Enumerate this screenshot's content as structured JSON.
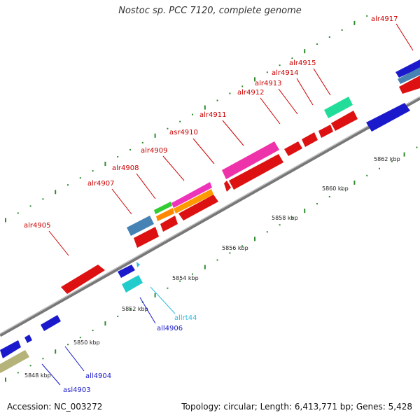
{
  "title": "Nostoc sp. PCC 7120, complete genome",
  "footer": {
    "accession": "Accession: NC_003272",
    "summary": "Topology: circular; Length: 6,413,771 bp; Genes: 5,428"
  },
  "ticks": [
    "5848 kbp",
    "5850 kbp",
    "5852 kbp",
    "5854 kbp",
    "5856 kbp",
    "5858 kbp",
    "5860 kbp",
    "5862 kbp"
  ],
  "genes": [
    {
      "name": "asl4903",
      "color": "#1a1acc"
    },
    {
      "name": "all4904",
      "color": "#1a1acc"
    },
    {
      "name": "alr4905",
      "color": "#cc0000"
    },
    {
      "name": "all4906",
      "color": "#1a1acc"
    },
    {
      "name": "allrt44",
      "color": "#33bbdd"
    },
    {
      "name": "alr4907",
      "color": "#cc0000"
    },
    {
      "name": "alr4908",
      "color": "#cc0000"
    },
    {
      "name": "alr4909",
      "color": "#cc0000"
    },
    {
      "name": "asr4910",
      "color": "#cc0000"
    },
    {
      "name": "alr4911",
      "color": "#cc0000"
    },
    {
      "name": "alr4912",
      "color": "#cc0000"
    },
    {
      "name": "alr4913",
      "color": "#cc0000"
    },
    {
      "name": "alr4914",
      "color": "#cc0000"
    },
    {
      "name": "alr4915",
      "color": "#cc0000"
    },
    {
      "name": "alr4917",
      "color": "#cc0000"
    }
  ]
}
